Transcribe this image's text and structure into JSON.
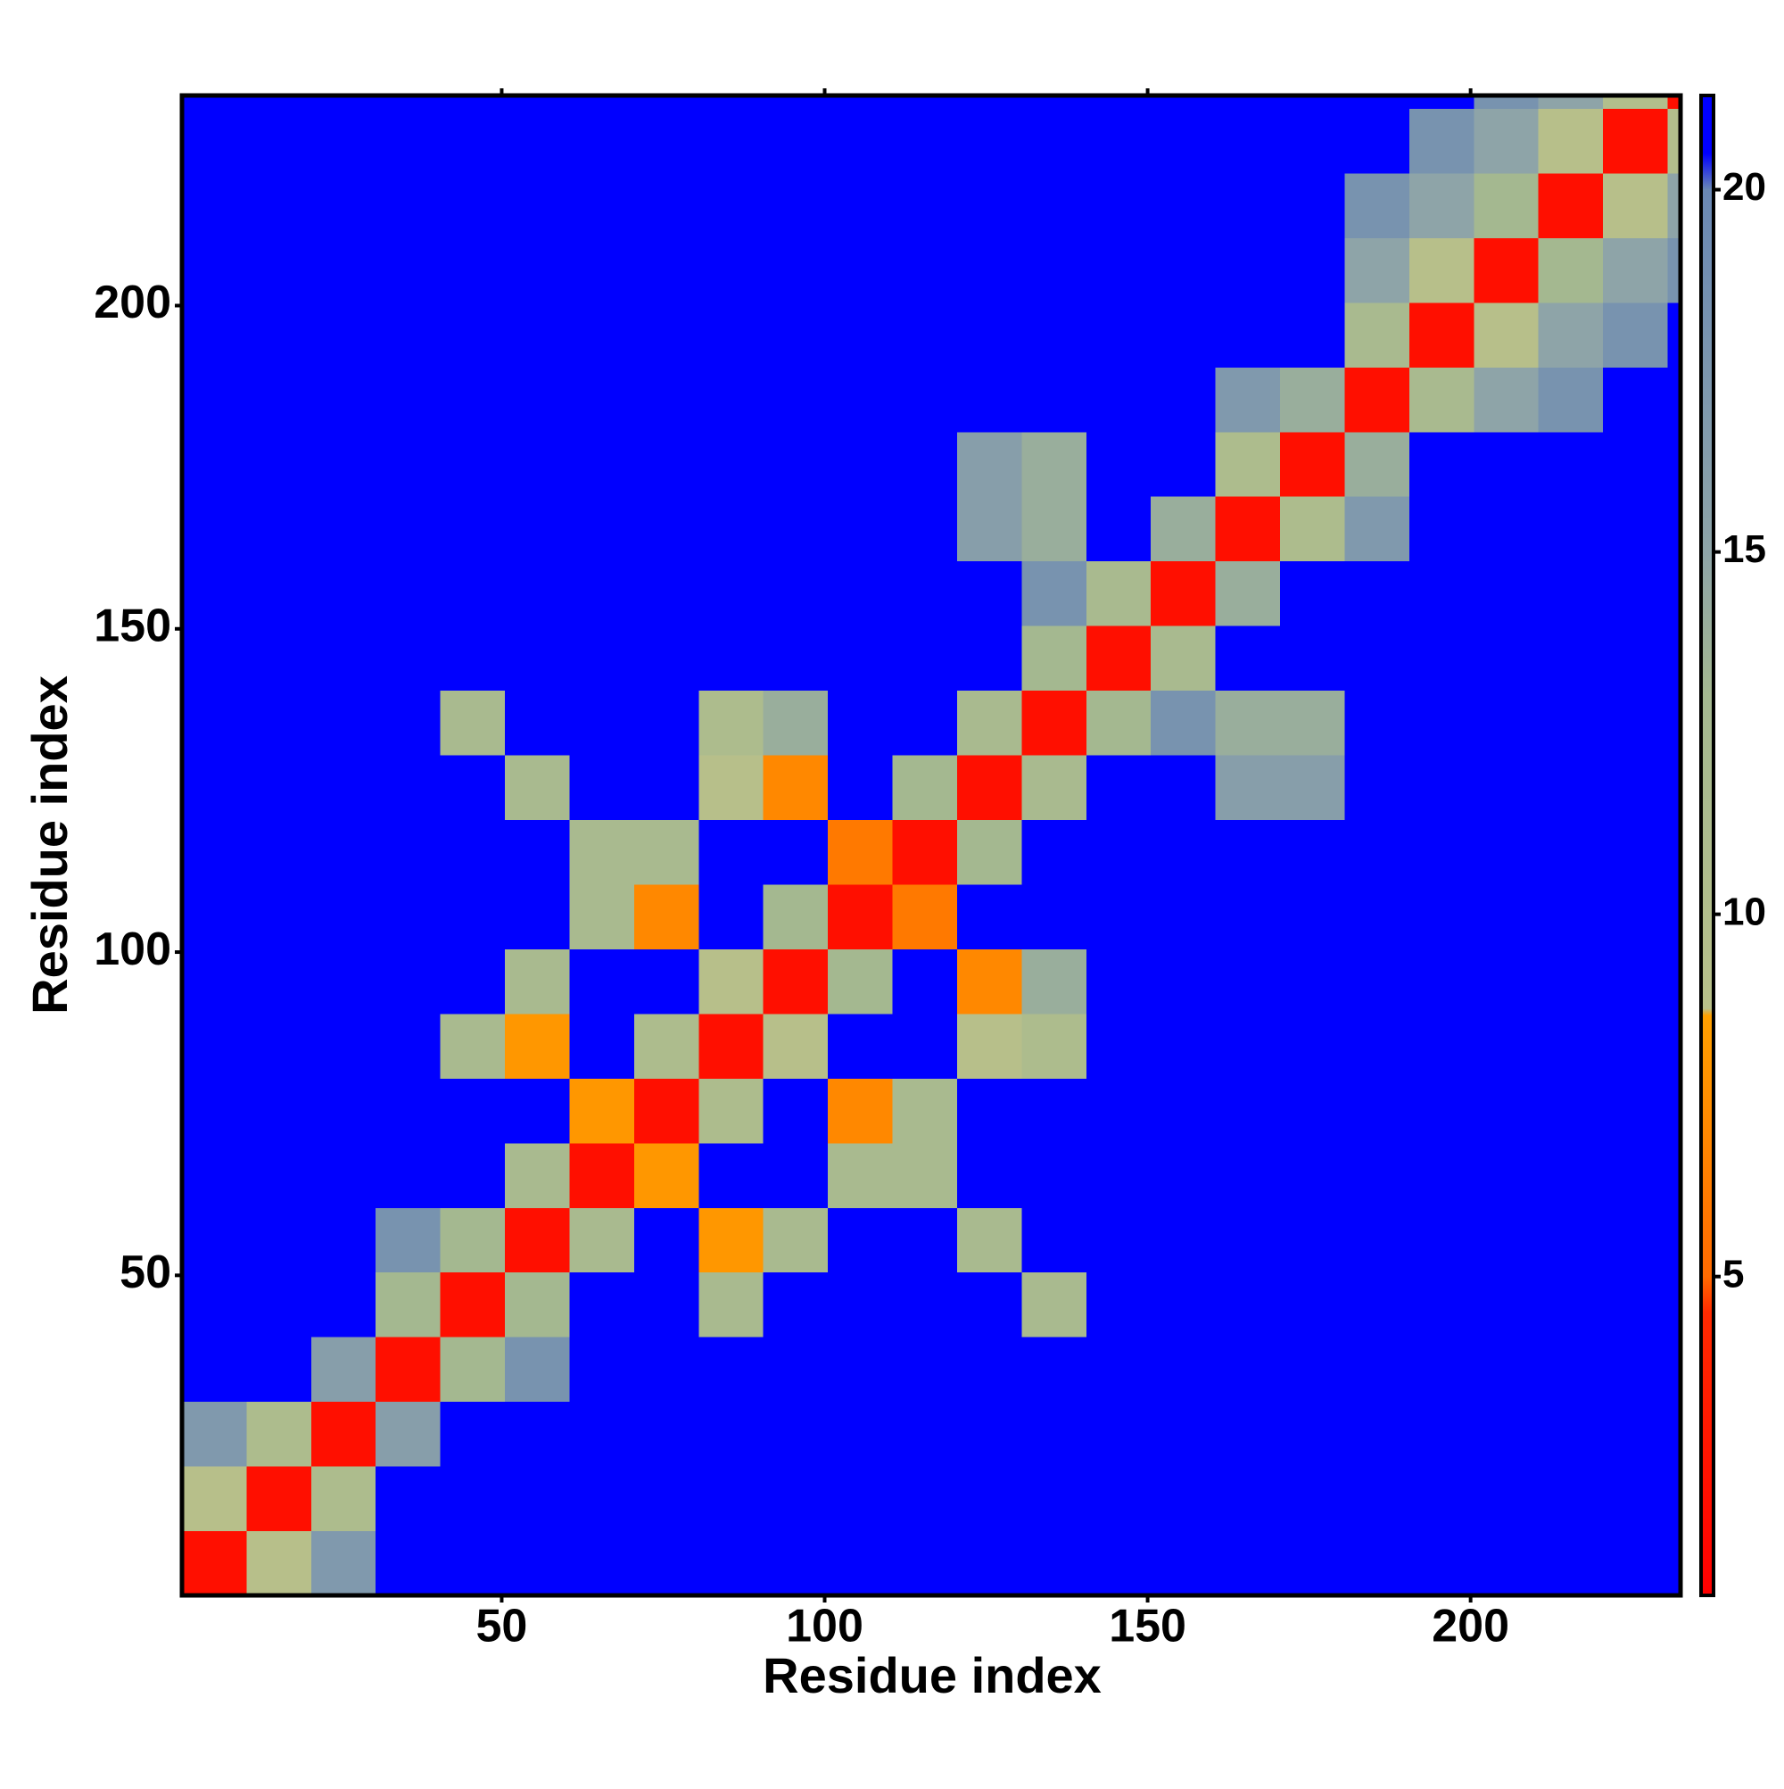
{
  "chart_data": {
    "type": "heatmap",
    "xlabel": "Residue index",
    "ylabel": "Residue index",
    "x_edges": [
      0.5,
      10.5,
      20.5,
      30.5,
      40.5,
      50.5,
      60.5,
      70.5,
      80.5,
      90.5,
      100.5,
      110.5,
      120.5,
      130.5,
      140.5,
      150.5,
      160.5,
      170.5,
      180.5,
      190.5,
      200.5,
      210.5,
      220.5,
      230.5,
      232.5
    ],
    "y_edges": [
      0.5,
      10.5,
      20.5,
      30.5,
      40.5,
      50.5,
      60.5,
      70.5,
      80.5,
      90.5,
      100.5,
      110.5,
      120.5,
      130.5,
      140.5,
      150.5,
      160.5,
      170.5,
      180.5,
      190.5,
      200.5,
      210.5,
      220.5,
      230.5,
      232.5
    ],
    "z": [
      [
        2,
        9,
        17,
        21,
        21,
        21,
        21,
        21,
        21,
        21,
        21,
        21,
        21,
        21,
        21,
        21,
        21,
        21,
        21,
        21,
        21,
        21,
        21,
        21
      ],
      [
        9,
        2,
        11,
        21,
        21,
        21,
        21,
        21,
        21,
        21,
        21,
        21,
        21,
        21,
        21,
        21,
        21,
        21,
        21,
        21,
        21,
        21,
        21,
        21
      ],
      [
        17,
        11,
        2,
        16,
        21,
        21,
        21,
        21,
        21,
        21,
        21,
        21,
        21,
        21,
        21,
        21,
        21,
        21,
        21,
        21,
        21,
        21,
        21,
        21
      ],
      [
        21,
        21,
        16,
        2,
        13,
        18,
        21,
        21,
        21,
        21,
        21,
        21,
        21,
        21,
        21,
        21,
        21,
        21,
        21,
        21,
        21,
        21,
        21,
        21
      ],
      [
        21,
        21,
        21,
        13,
        2,
        13,
        21,
        21,
        12,
        21,
        21,
        21,
        21,
        12,
        21,
        21,
        21,
        21,
        21,
        21,
        21,
        21,
        21,
        21
      ],
      [
        21,
        21,
        21,
        18,
        13,
        2,
        12,
        21,
        8,
        12,
        21,
        21,
        12,
        21,
        21,
        21,
        21,
        21,
        21,
        21,
        21,
        21,
        21,
        21
      ],
      [
        21,
        21,
        21,
        21,
        21,
        12,
        2,
        8,
        21,
        21,
        12,
        12,
        21,
        21,
        21,
        21,
        21,
        21,
        21,
        21,
        21,
        21,
        21,
        21
      ],
      [
        21,
        21,
        21,
        21,
        21,
        21,
        8,
        2,
        11,
        21,
        7,
        12,
        21,
        21,
        21,
        21,
        21,
        21,
        21,
        21,
        21,
        21,
        21,
        21
      ],
      [
        21,
        21,
        21,
        21,
        12,
        8,
        21,
        11,
        2,
        9,
        21,
        21,
        9,
        11,
        21,
        21,
        21,
        21,
        21,
        21,
        21,
        21,
        21,
        21
      ],
      [
        21,
        21,
        21,
        21,
        21,
        12,
        21,
        21,
        9,
        2,
        13,
        21,
        7,
        14,
        21,
        21,
        21,
        21,
        21,
        21,
        21,
        21,
        21,
        21
      ],
      [
        21,
        21,
        21,
        21,
        21,
        21,
        12,
        7,
        21,
        13,
        2,
        6,
        21,
        21,
        21,
        21,
        21,
        21,
        21,
        21,
        21,
        21,
        21,
        21
      ],
      [
        21,
        21,
        21,
        21,
        21,
        21,
        12,
        12,
        21,
        21,
        6,
        2,
        13,
        21,
        21,
        21,
        21,
        21,
        21,
        21,
        21,
        21,
        21,
        21
      ],
      [
        21,
        21,
        21,
        21,
        21,
        12,
        21,
        21,
        9,
        7,
        21,
        13,
        2,
        12,
        21,
        21,
        16,
        16,
        21,
        21,
        21,
        21,
        21,
        21
      ],
      [
        21,
        21,
        21,
        21,
        12,
        21,
        21,
        21,
        11,
        14,
        21,
        21,
        12,
        2,
        13,
        18,
        14,
        14,
        21,
        21,
        21,
        21,
        21,
        21
      ],
      [
        21,
        21,
        21,
        21,
        21,
        21,
        21,
        21,
        21,
        21,
        21,
        21,
        21,
        13,
        2,
        12,
        21,
        21,
        21,
        21,
        21,
        21,
        21,
        21
      ],
      [
        21,
        21,
        21,
        21,
        21,
        21,
        21,
        21,
        21,
        21,
        21,
        21,
        21,
        18,
        12,
        2,
        14,
        21,
        21,
        21,
        21,
        21,
        21,
        21
      ],
      [
        21,
        21,
        21,
        21,
        21,
        21,
        21,
        21,
        21,
        21,
        21,
        21,
        16,
        14,
        21,
        14,
        2,
        11,
        17,
        21,
        21,
        21,
        21,
        21
      ],
      [
        21,
        21,
        21,
        21,
        21,
        21,
        21,
        21,
        21,
        21,
        21,
        21,
        16,
        14,
        21,
        21,
        11,
        2,
        14,
        21,
        21,
        21,
        21,
        21
      ],
      [
        21,
        21,
        21,
        21,
        21,
        21,
        21,
        21,
        21,
        21,
        21,
        21,
        21,
        21,
        21,
        21,
        17,
        14,
        2,
        12,
        15,
        18,
        21,
        21
      ],
      [
        21,
        21,
        21,
        21,
        21,
        21,
        21,
        21,
        21,
        21,
        21,
        21,
        21,
        21,
        21,
        21,
        21,
        21,
        12,
        2,
        9,
        15,
        18,
        21
      ],
      [
        21,
        21,
        21,
        21,
        21,
        21,
        21,
        21,
        21,
        21,
        21,
        21,
        21,
        21,
        21,
        21,
        21,
        21,
        15,
        9,
        2,
        13,
        15,
        18
      ],
      [
        21,
        21,
        21,
        21,
        21,
        21,
        21,
        21,
        21,
        21,
        21,
        21,
        21,
        21,
        21,
        21,
        21,
        21,
        18,
        15,
        13,
        2,
        9,
        15
      ],
      [
        21,
        21,
        21,
        21,
        21,
        21,
        21,
        21,
        21,
        21,
        21,
        21,
        21,
        21,
        21,
        21,
        21,
        21,
        21,
        18,
        15,
        9,
        2,
        10
      ],
      [
        21,
        21,
        21,
        21,
        21,
        21,
        21,
        21,
        21,
        21,
        21,
        21,
        21,
        21,
        21,
        21,
        21,
        21,
        21,
        21,
        18,
        15,
        10,
        2
      ]
    ],
    "xlim": [
      0.5,
      232.5
    ],
    "ylim": [
      0.5,
      232.5
    ],
    "xticks": [
      50,
      100,
      150,
      200
    ],
    "yticks": [
      50,
      100,
      150,
      200
    ],
    "zlim": [
      0.6,
      21.3
    ],
    "zticks": [
      5,
      10,
      15,
      20
    ],
    "colorscale": [
      [
        0.6,
        "#ff0000"
      ],
      [
        4.5,
        "#ff2a00"
      ],
      [
        5.0,
        "#ff6a00"
      ],
      [
        8.6,
        "#ffa000"
      ],
      [
        8.7,
        "#b8c08a"
      ],
      [
        13,
        "#a4b890"
      ],
      [
        15,
        "#8ea4a8"
      ],
      [
        20,
        "#6a88b4"
      ],
      [
        20.5,
        "#0000ff"
      ],
      [
        21.3,
        "#0000ff"
      ]
    ]
  }
}
